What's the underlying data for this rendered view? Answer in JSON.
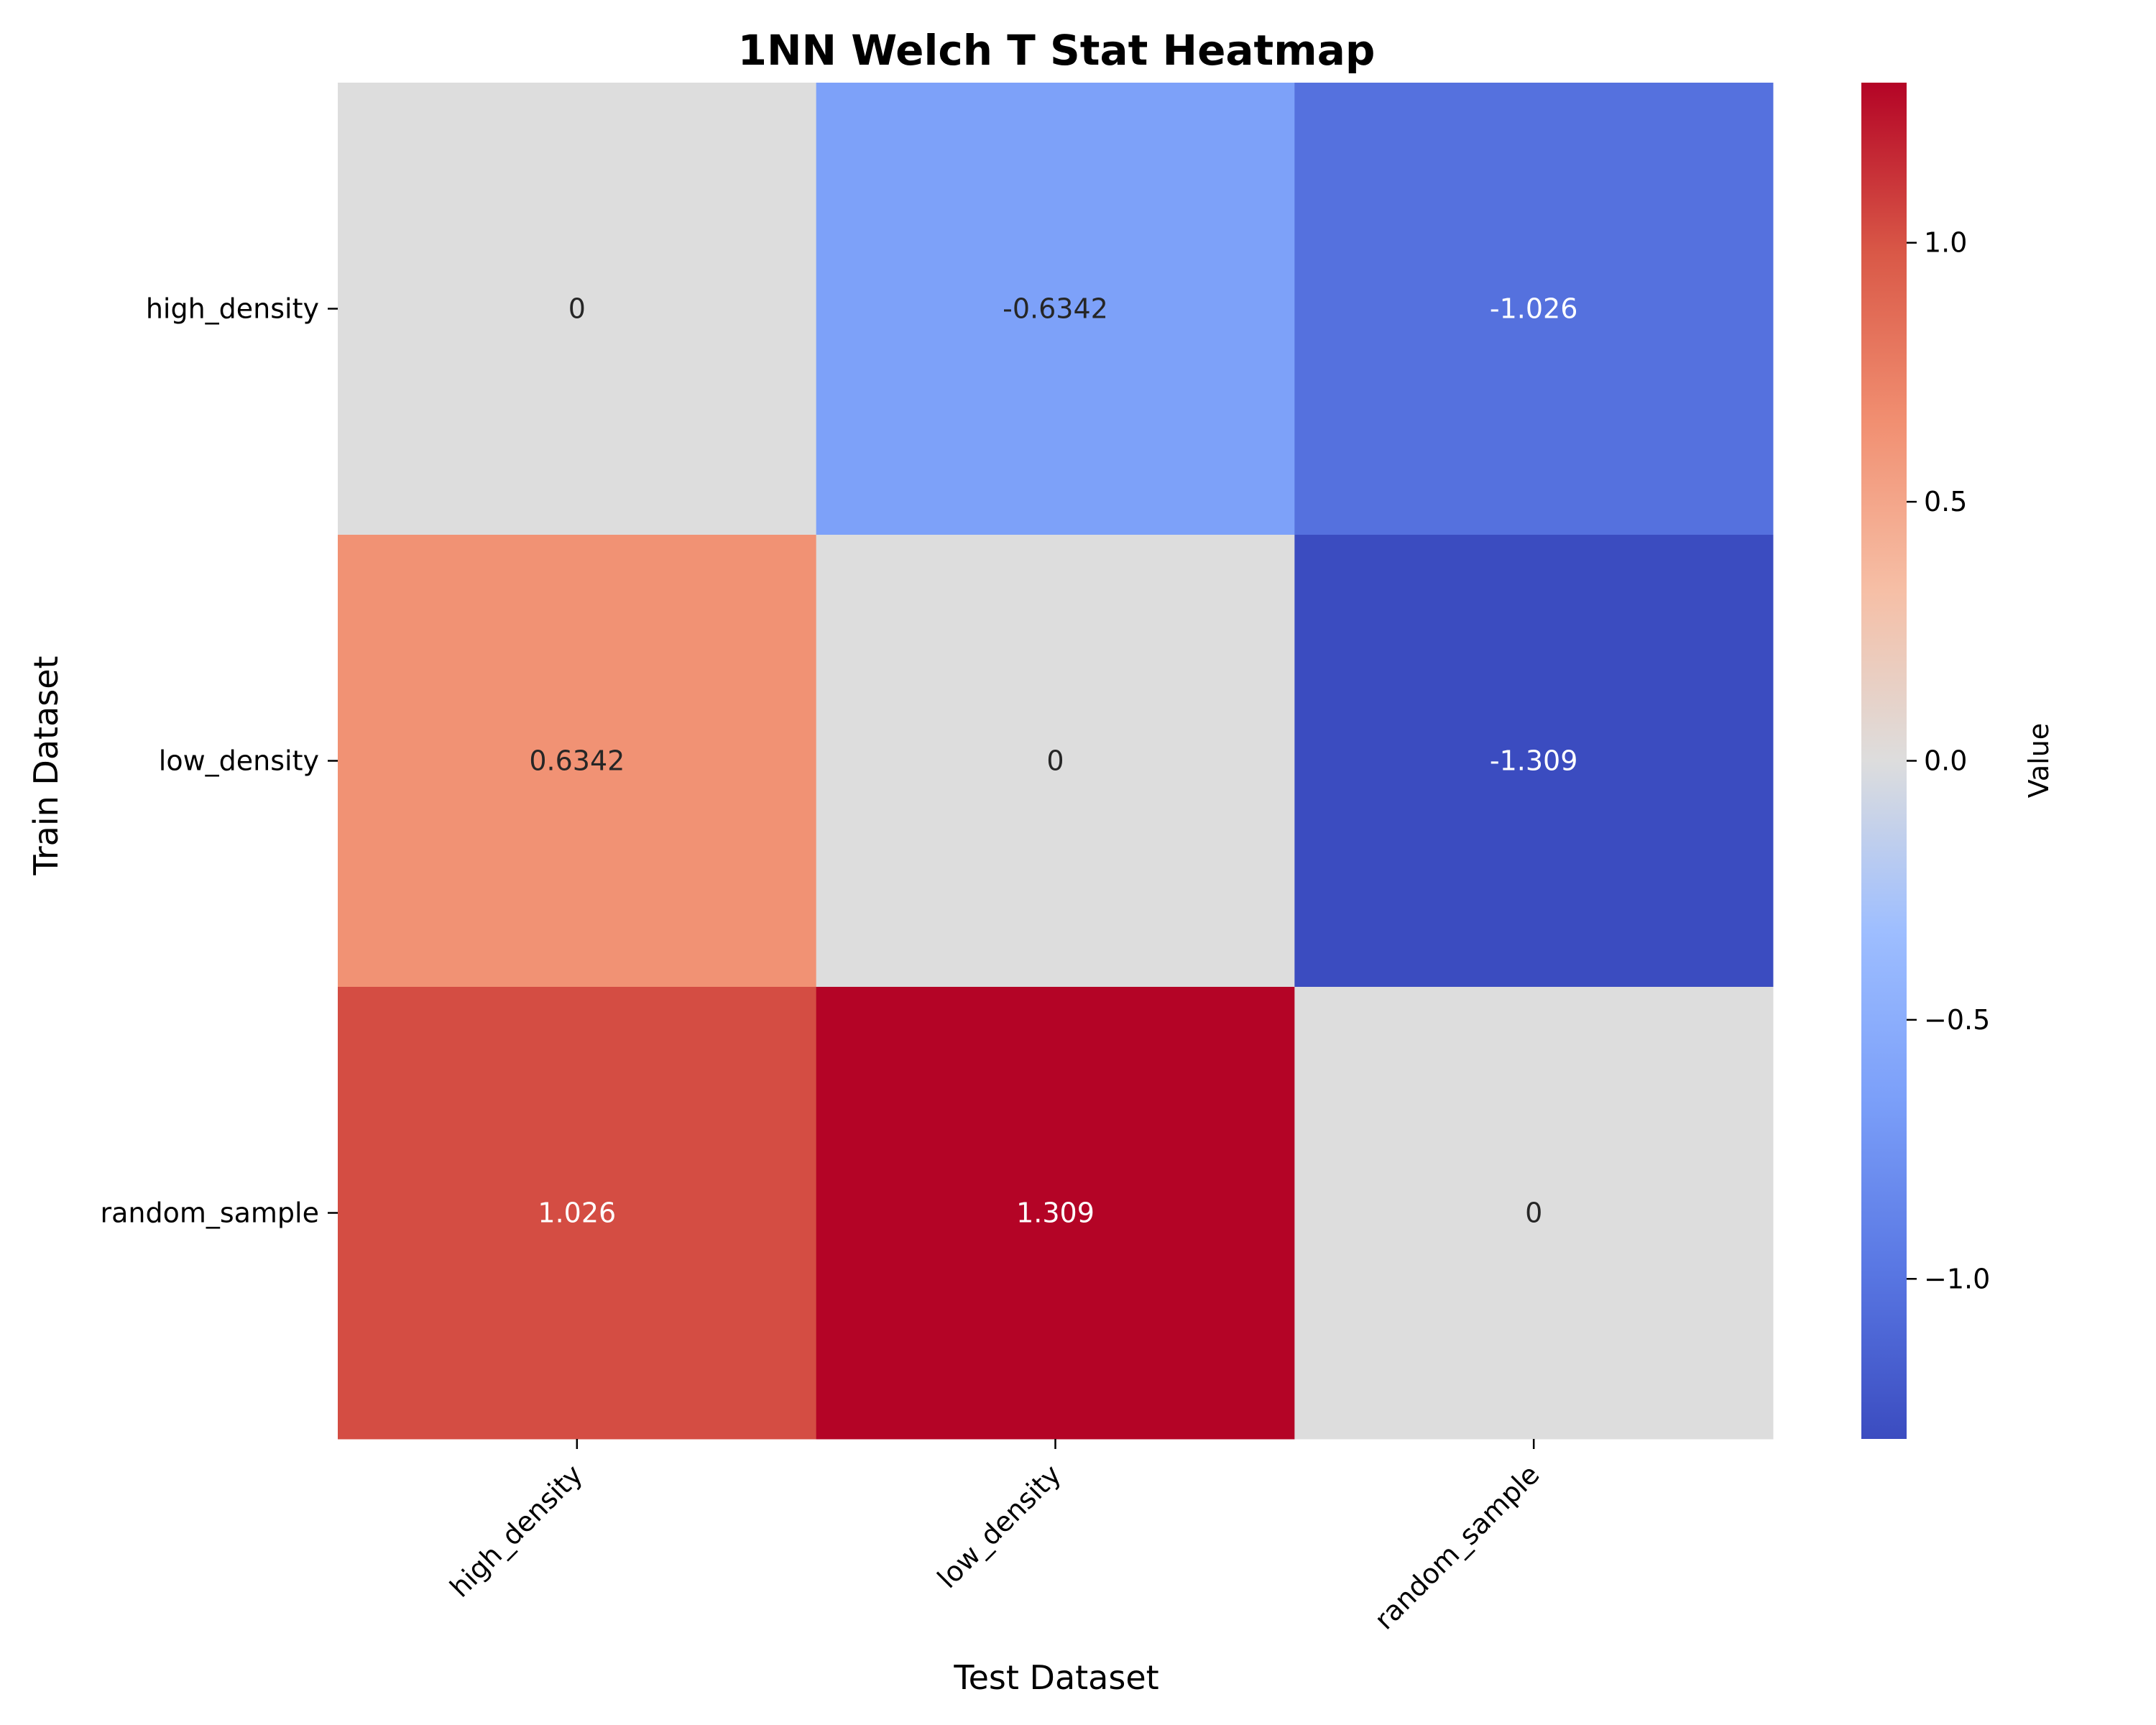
{
  "chart_data": {
    "type": "heatmap",
    "title": "1NN Welch T Stat Heatmap",
    "xlabel": "Test Dataset",
    "ylabel": "Train Dataset",
    "x_categories": [
      "high_density",
      "low_density",
      "random_sample"
    ],
    "y_categories": [
      "high_density",
      "low_density",
      "random_sample"
    ],
    "values": [
      [
        0,
        -0.6342,
        -1.026
      ],
      [
        0.6342,
        0,
        -1.309
      ],
      [
        1.026,
        1.309,
        0
      ]
    ],
    "cell_labels": [
      [
        "0",
        "-0.6342",
        "-1.026"
      ],
      [
        "0.6342",
        "0",
        "-1.309"
      ],
      [
        "1.026",
        "1.309",
        "0"
      ]
    ],
    "colormap": "coolwarm",
    "color_range": [
      -1.309,
      1.309
    ],
    "colorbar": {
      "label": "Value",
      "ticks": [
        -1.0,
        -0.5,
        0.0,
        0.5,
        1.0
      ],
      "tick_labels": [
        "−1.0",
        "−0.5",
        "0.0",
        "0.5",
        "1.0"
      ]
    },
    "x_tick_rotation": "45 degrees"
  }
}
